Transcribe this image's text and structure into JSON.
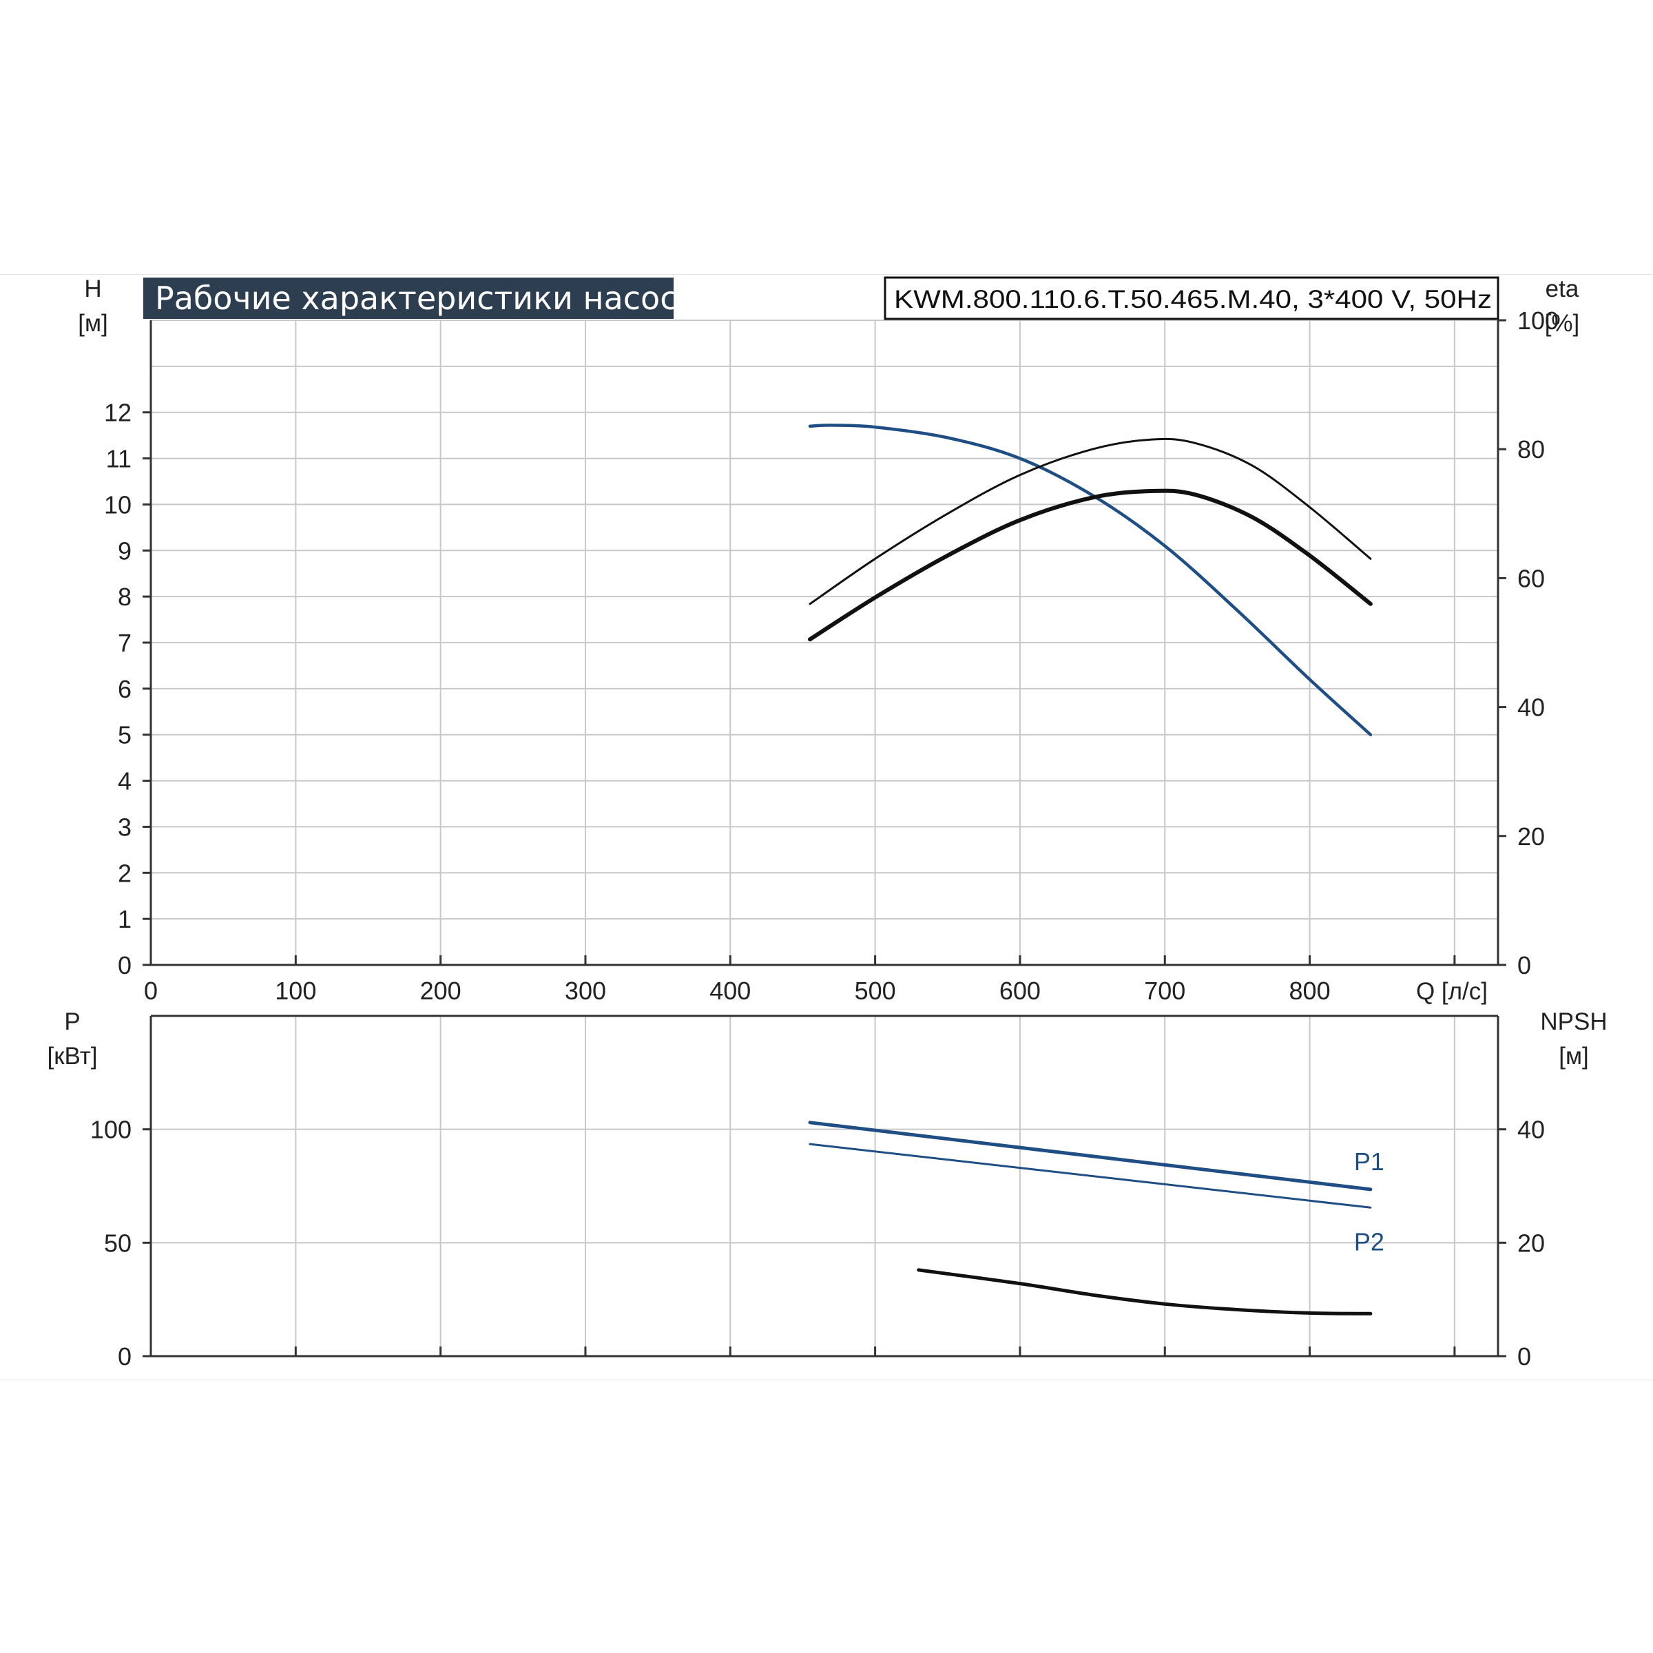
{
  "header": {
    "title": "Рабочие характеристики насоса",
    "model": "KWM.800.110.6.T.50.465.M.40, 3*400 V, 50Hz"
  },
  "colors": {
    "title_bg": "#2d3e50",
    "curve_blue": "#1f4e85",
    "curve_black": "#111111",
    "grid": "#c8c8c8",
    "axis": "#333333"
  },
  "chart_data": [
    {
      "id": "top",
      "type": "line",
      "x_axis": {
        "label": "Q [л/с]",
        "min": 0,
        "max": 930,
        "ticks": [
          0,
          100,
          200,
          300,
          400,
          500,
          600,
          700,
          800
        ]
      },
      "y_left": {
        "label_top": "H",
        "label_unit": "[м]",
        "min": 0,
        "max": 14,
        "ticks": [
          0,
          1,
          2,
          3,
          4,
          5,
          6,
          7,
          8,
          9,
          10,
          11,
          12
        ]
      },
      "y_right": {
        "label_top": "eta",
        "label_unit": "[%]",
        "min": 0,
        "max": 100,
        "ticks": [
          0,
          20,
          40,
          60,
          80,
          100
        ]
      },
      "grid": true,
      "series": [
        {
          "role": "head",
          "axis": "left",
          "color": "#1f4e85",
          "width": 4.5,
          "x": [
            455,
            470,
            500,
            550,
            600,
            650,
            700,
            750,
            800,
            842
          ],
          "y": [
            11.7,
            11.72,
            11.68,
            11.45,
            11.0,
            10.2,
            9.1,
            7.7,
            6.2,
            5.0
          ]
        },
        {
          "role": "efficiency",
          "axis": "right",
          "color": "#111111",
          "width": 3,
          "x": [
            455,
            500,
            550,
            600,
            650,
            690,
            720,
            760,
            800,
            842
          ],
          "y": [
            56,
            63,
            70,
            76,
            80,
            81.5,
            81,
            77.5,
            71,
            63
          ]
        },
        {
          "role": "efficiency",
          "axis": "right",
          "color": "#111111",
          "width": 6,
          "x": [
            455,
            500,
            550,
            600,
            650,
            690,
            720,
            760,
            800,
            842
          ],
          "y": [
            50.5,
            57,
            63.5,
            69,
            72.5,
            73.5,
            73,
            69.5,
            63.5,
            56
          ]
        }
      ]
    },
    {
      "id": "bottom",
      "type": "line",
      "x_axis": {
        "label": "",
        "min": 0,
        "max": 930,
        "ticks": [
          0,
          100,
          200,
          300,
          400,
          500,
          600,
          700,
          800
        ]
      },
      "y_left": {
        "label_top": "P",
        "label_unit": "[кВт]",
        "min": 0,
        "max": 150,
        "ticks": [
          0,
          50,
          100
        ]
      },
      "y_right": {
        "label_top": "NPSH",
        "label_unit": "[м]",
        "min": 0,
        "max": 60,
        "ticks": [
          0,
          20,
          40
        ]
      },
      "grid": true,
      "series": [
        {
          "name": "P1",
          "axis": "left",
          "color": "#1f4e85",
          "width": 5,
          "x": [
            455,
            842
          ],
          "y": [
            103,
            73.5
          ]
        },
        {
          "name": "P2",
          "axis": "left",
          "color": "#1f4e85",
          "width": 3,
          "x": [
            455,
            842
          ],
          "y": [
            93.5,
            65.5
          ]
        },
        {
          "role": "npsh",
          "axis": "right",
          "color": "#111111",
          "width": 5,
          "x": [
            530,
            600,
            650,
            700,
            750,
            800,
            842
          ],
          "y": [
            15.2,
            12.8,
            10.8,
            9.2,
            8.2,
            7.6,
            7.5
          ]
        }
      ]
    }
  ]
}
